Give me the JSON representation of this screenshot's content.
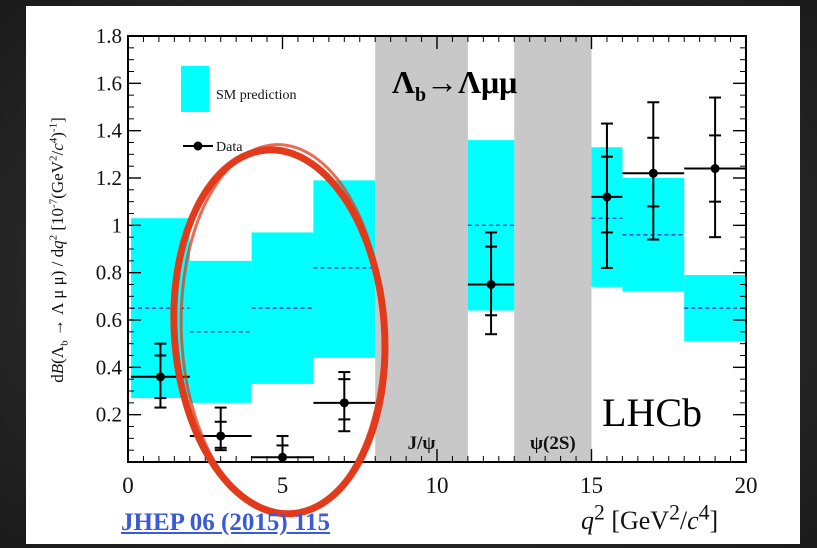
{
  "reference": {
    "text": "JHEP 06 (2015) 115"
  },
  "chart_data": {
    "type": "bar",
    "process_label": "Λ→Λμμ",
    "process_label_parts": {
      "a": "Λ",
      "sub": "b",
      "rest": "→Λμμ"
    },
    "experiment_label": "LHCb",
    "xlabel": {
      "main": "q",
      "sup1": "2",
      "unit_pre": "[GeV",
      "sup2": "2",
      "unit_mid": "/",
      "unit_c": "c",
      "sup3": "4",
      "unit_post": "]"
    },
    "ylabel": "dB(Λ_b → Λ μ μ) / dq² [10⁻⁷(GeV²/c⁴)⁻¹]",
    "ylabel_parts": {
      "d": "d",
      "B": "B",
      "open": "(Λ",
      "sub_b": "b",
      "rest": " → Λ μ μ) / d",
      "q": "q",
      "sq": "2",
      "bracket": " [10",
      "exp": "-7",
      "gev": "(GeV",
      "sq2": "2",
      "slash": "/",
      "c": "c",
      "four": "4",
      "close": ")",
      "inv": "-1",
      "end": "]"
    },
    "xlim": [
      0,
      20
    ],
    "ylim": [
      0,
      1.8
    ],
    "xticks": [
      0,
      5,
      10,
      15,
      20
    ],
    "xtick_labels": [
      "0",
      "5",
      "10",
      "15",
      "20"
    ],
    "yticks": [
      0.2,
      0.4,
      0.6,
      0.8,
      1.0,
      1.2,
      1.4,
      1.6,
      1.8
    ],
    "ytick_labels": [
      "0.2",
      "0.4",
      "0.6",
      "0.8",
      "1",
      "1.2",
      "1.4",
      "1.6",
      "1.8"
    ],
    "legend": {
      "placement": "top-left",
      "entries": [
        {
          "name": "SM prediction",
          "kind": "band"
        },
        {
          "name": "Data",
          "kind": "point"
        }
      ]
    },
    "vetoed_regions": [
      {
        "label": "J/ψ",
        "x_range": [
          8,
          11
        ]
      },
      {
        "label": "ψ(2S)",
        "x_range": [
          12.5,
          15
        ]
      }
    ],
    "series": [
      {
        "name": "SM prediction",
        "bins": [
          {
            "x_range": [
              0.1,
              2
            ],
            "low": 0.27,
            "high": 1.03,
            "central": 0.65
          },
          {
            "x_range": [
              2,
              4
            ],
            "low": 0.25,
            "high": 0.85,
            "central": 0.55
          },
          {
            "x_range": [
              4,
              6
            ],
            "low": 0.33,
            "high": 0.97,
            "central": 0.65
          },
          {
            "x_range": [
              6,
              8
            ],
            "low": 0.44,
            "high": 1.19,
            "central": 0.82
          },
          {
            "x_range": [
              11,
              12.5
            ],
            "low": 0.64,
            "high": 1.36,
            "central": 1.0
          },
          {
            "x_range": [
              15,
              16
            ],
            "low": 0.74,
            "high": 1.33,
            "central": 1.03
          },
          {
            "x_range": [
              16,
              18
            ],
            "low": 0.72,
            "high": 1.2,
            "central": 0.96
          },
          {
            "x_range": [
              18,
              20
            ],
            "low": 0.51,
            "high": 0.79,
            "central": 0.65
          }
        ]
      },
      {
        "name": "Data",
        "points": [
          {
            "x": 1.05,
            "xerr": [
              0.95,
              0.95
            ],
            "y": 0.36,
            "err_stat": [
              0.09,
              0.09
            ],
            "err_tot": [
              0.13,
              0.14
            ]
          },
          {
            "x": 3.0,
            "xerr": [
              1.0,
              1.0
            ],
            "y": 0.11,
            "err_stat": [
              0.05,
              0.06
            ],
            "err_tot": [
              0.06,
              0.12
            ]
          },
          {
            "x": 5.0,
            "xerr": [
              1.0,
              1.0
            ],
            "y": 0.02,
            "err_stat": [
              0.02,
              0.05
            ],
            "err_tot": [
              0.02,
              0.09
            ]
          },
          {
            "x": 7.0,
            "xerr": [
              1.0,
              1.0
            ],
            "y": 0.25,
            "err_stat": [
              0.07,
              0.1
            ],
            "err_tot": [
              0.12,
              0.13
            ]
          },
          {
            "x": 11.75,
            "xerr": [
              0.75,
              0.75
            ],
            "y": 0.75,
            "err_stat": [
              0.13,
              0.16
            ],
            "err_tot": [
              0.21,
              0.22
            ]
          },
          {
            "x": 15.5,
            "xerr": [
              0.5,
              0.5
            ],
            "y": 1.12,
            "err_stat": [
              0.15,
              0.17
            ],
            "err_tot": [
              0.3,
              0.31
            ]
          },
          {
            "x": 17.0,
            "xerr": [
              1.0,
              1.0
            ],
            "y": 1.22,
            "err_stat": [
              0.14,
              0.15
            ],
            "err_tot": [
              0.28,
              0.3
            ]
          },
          {
            "x": 19.0,
            "xerr": [
              1.0,
              1.0
            ],
            "y": 1.24,
            "err_stat": [
              0.14,
              0.14
            ],
            "err_tot": [
              0.29,
              0.3
            ]
          }
        ]
      }
    ],
    "annotation": {
      "shape": "ellipse",
      "color": "#e23b1c",
      "x_center": 4.9,
      "y_center": 0.55,
      "x_halfwidth": 3.4,
      "y_halfwidth": 0.77
    },
    "colors": {
      "band": "#00ffff",
      "veto": "#c8c8c8",
      "central": "#2a3ccf",
      "data": "#000000",
      "ring": "#e23b1c"
    }
  }
}
